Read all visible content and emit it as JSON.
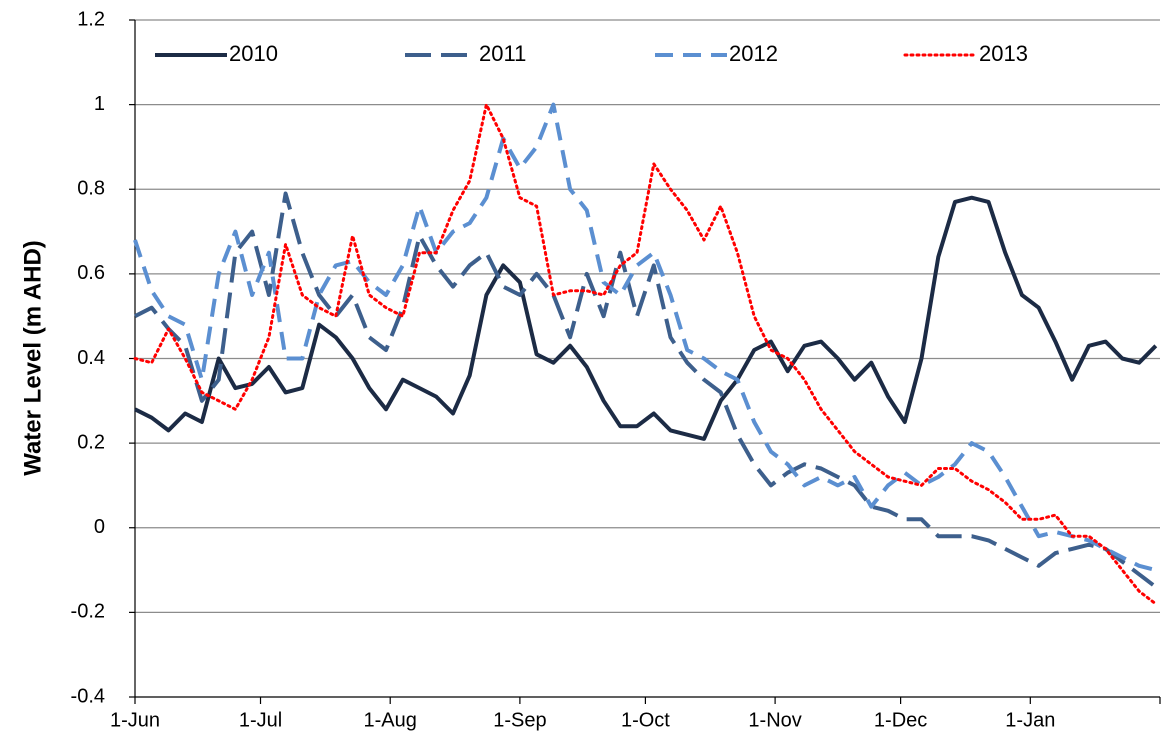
{
  "chart_data": {
    "type": "line",
    "y_label": "Water Level (m AHD)",
    "xlim": [
      0,
      245
    ],
    "xticks": [
      {
        "value": 0,
        "label": "1-Jun"
      },
      {
        "value": 30,
        "label": "1-Jul"
      },
      {
        "value": 61,
        "label": "1-Aug"
      },
      {
        "value": 92,
        "label": "1-Sep"
      },
      {
        "value": 122,
        "label": "1-Oct"
      },
      {
        "value": 153,
        "label": "1-Nov"
      },
      {
        "value": 183,
        "label": "1-Dec"
      },
      {
        "value": 214,
        "label": "1-Jan"
      },
      {
        "value": 245,
        "label": ""
      }
    ],
    "ylim": [
      -0.4,
      1.2
    ],
    "yticks": [
      -0.4,
      -0.2,
      0,
      0.2,
      0.4,
      0.6,
      0.8,
      1,
      1.2
    ],
    "grid": true,
    "legend": "top",
    "x": [
      0,
      4,
      8,
      12,
      16,
      20,
      24,
      28,
      32,
      36,
      40,
      44,
      48,
      52,
      56,
      60,
      64,
      68,
      72,
      76,
      80,
      84,
      88,
      92,
      96,
      100,
      104,
      108,
      112,
      116,
      120,
      124,
      128,
      132,
      136,
      140,
      144,
      148,
      152,
      156,
      160,
      164,
      168,
      172,
      176,
      180,
      184,
      188,
      192,
      196,
      200,
      204,
      208,
      212,
      216,
      220,
      224,
      228,
      232,
      236,
      240,
      244
    ],
    "series": [
      {
        "name": "2010",
        "color": "#1c2b45",
        "style": "solid",
        "values": [
          0.28,
          0.26,
          0.23,
          0.27,
          0.25,
          0.4,
          0.33,
          0.34,
          0.38,
          0.32,
          0.33,
          0.48,
          0.45,
          0.4,
          0.33,
          0.28,
          0.35,
          0.33,
          0.31,
          0.27,
          0.36,
          0.55,
          0.62,
          0.58,
          0.41,
          0.39,
          0.43,
          0.38,
          0.3,
          0.24,
          0.24,
          0.27,
          0.23,
          0.22,
          0.21,
          0.3,
          0.35,
          0.42,
          0.44,
          0.37,
          0.43,
          0.44,
          0.4,
          0.35,
          0.39,
          0.31,
          0.25,
          0.4,
          0.64,
          0.77,
          0.78,
          0.77,
          0.65,
          0.55,
          0.52,
          0.44,
          0.35,
          0.43,
          0.44,
          0.4,
          0.39,
          0.43
        ]
      },
      {
        "name": "2011",
        "color": "#3d5f8c",
        "style": "longdash",
        "values": [
          0.5,
          0.52,
          0.47,
          0.43,
          0.3,
          0.35,
          0.65,
          0.7,
          0.55,
          0.79,
          0.65,
          0.55,
          0.5,
          0.55,
          0.45,
          0.42,
          0.52,
          0.69,
          0.62,
          0.57,
          0.62,
          0.65,
          0.57,
          0.55,
          0.6,
          0.55,
          0.45,
          0.6,
          0.5,
          0.65,
          0.5,
          0.62,
          0.45,
          0.39,
          0.35,
          0.32,
          0.22,
          0.15,
          0.1,
          0.13,
          0.15,
          0.14,
          0.12,
          0.1,
          0.05,
          0.04,
          0.02,
          0.02,
          -0.02,
          -0.02,
          -0.02,
          -0.03,
          -0.05,
          -0.07,
          -0.09,
          -0.06,
          -0.05,
          -0.04,
          -0.05,
          -0.08,
          -0.11,
          -0.14
        ]
      },
      {
        "name": "2012",
        "color": "#5b8fd1",
        "style": "dash",
        "values": [
          0.68,
          0.56,
          0.5,
          0.48,
          0.35,
          0.6,
          0.7,
          0.55,
          0.65,
          0.4,
          0.4,
          0.55,
          0.62,
          0.63,
          0.58,
          0.55,
          0.62,
          0.76,
          0.65,
          0.7,
          0.72,
          0.78,
          0.92,
          0.85,
          0.9,
          1.0,
          0.8,
          0.75,
          0.58,
          0.55,
          0.62,
          0.65,
          0.55,
          0.42,
          0.4,
          0.37,
          0.35,
          0.25,
          0.18,
          0.15,
          0.1,
          0.12,
          0.1,
          0.12,
          0.05,
          0.1,
          0.13,
          0.1,
          0.12,
          0.15,
          0.2,
          0.18,
          0.12,
          0.05,
          -0.02,
          -0.01,
          -0.02,
          -0.03,
          -0.05,
          -0.07,
          -0.09,
          -0.1
        ]
      },
      {
        "name": "2013",
        "color": "#ff0000",
        "style": "dotted",
        "values": [
          0.4,
          0.39,
          0.47,
          0.4,
          0.32,
          0.3,
          0.28,
          0.35,
          0.45,
          0.67,
          0.55,
          0.52,
          0.5,
          0.69,
          0.55,
          0.52,
          0.5,
          0.65,
          0.65,
          0.75,
          0.82,
          1.0,
          0.92,
          0.78,
          0.76,
          0.55,
          0.56,
          0.56,
          0.55,
          0.62,
          0.65,
          0.86,
          0.8,
          0.75,
          0.68,
          0.76,
          0.65,
          0.5,
          0.42,
          0.4,
          0.35,
          0.28,
          0.23,
          0.18,
          0.15,
          0.12,
          0.11,
          0.1,
          0.14,
          0.14,
          0.11,
          0.09,
          0.06,
          0.02,
          0.02,
          0.03,
          -0.02,
          -0.02,
          -0.05,
          -0.1,
          -0.15,
          -0.18
        ]
      }
    ]
  }
}
